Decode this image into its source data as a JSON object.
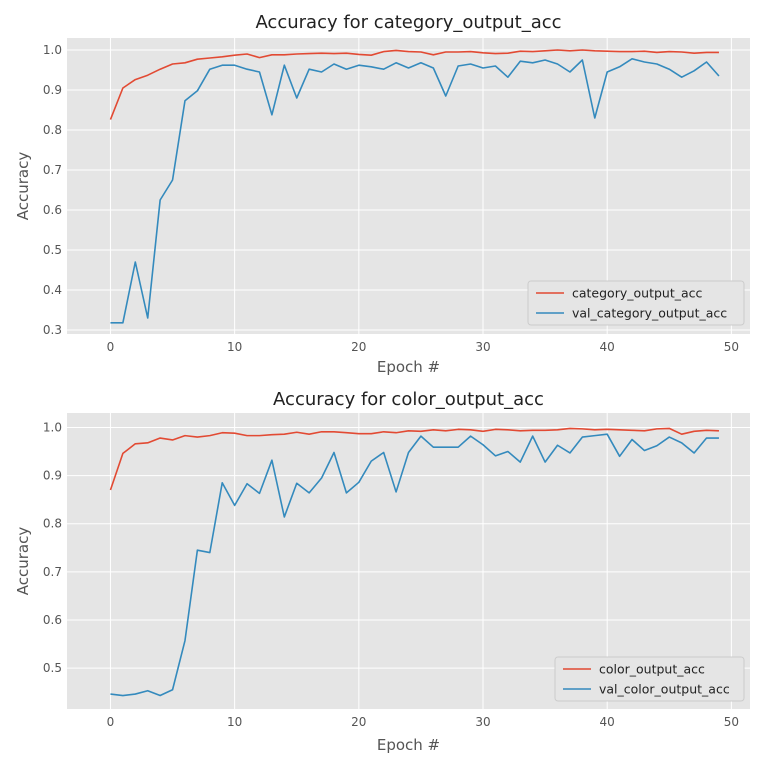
{
  "figure": {
    "background": "#ffffff",
    "panel_color": "#e5e5e5",
    "grid_color": "#ffffff",
    "train_color": "#e24a33",
    "val_color": "#348abd"
  },
  "chart_data": [
    {
      "type": "line",
      "title": "Accuracy for category_output_acc",
      "xlabel": "Epoch #",
      "ylabel": "Accuracy",
      "xlim": [
        -3.5,
        51.5
      ],
      "ylim": [
        0.29,
        1.03
      ],
      "xticks": [
        0,
        10,
        20,
        30,
        40,
        50
      ],
      "yticks": [
        0.3,
        0.4,
        0.5,
        0.6,
        0.7,
        0.8,
        0.9,
        1.0
      ],
      "ytick_labels": [
        "0.3",
        "0.4",
        "0.5",
        "0.6",
        "0.7",
        "0.8",
        "0.9",
        "1.0"
      ],
      "legend_position": "lower-right",
      "x": [
        0,
        1,
        2,
        3,
        4,
        5,
        6,
        7,
        8,
        9,
        10,
        11,
        12,
        13,
        14,
        15,
        16,
        17,
        18,
        19,
        20,
        21,
        22,
        23,
        24,
        25,
        26,
        27,
        28,
        29,
        30,
        31,
        32,
        33,
        34,
        35,
        36,
        37,
        38,
        39,
        40,
        41,
        42,
        43,
        44,
        45,
        46,
        47,
        48,
        49
      ],
      "series": [
        {
          "name": "category_output_acc",
          "role": "train",
          "values": [
            0.826,
            0.905,
            0.926,
            0.937,
            0.952,
            0.965,
            0.968,
            0.977,
            0.98,
            0.983,
            0.987,
            0.99,
            0.981,
            0.988,
            0.988,
            0.99,
            0.991,
            0.992,
            0.991,
            0.992,
            0.989,
            0.987,
            0.996,
            0.999,
            0.996,
            0.995,
            0.988,
            0.995,
            0.995,
            0.996,
            0.993,
            0.991,
            0.992,
            0.997,
            0.996,
            0.998,
            1.0,
            0.998,
            1.0,
            0.998,
            0.997,
            0.996,
            0.996,
            0.997,
            0.994,
            0.996,
            0.995,
            0.992,
            0.994,
            0.994
          ]
        },
        {
          "name": "val_category_output_acc",
          "role": "val",
          "values": [
            0.318,
            0.318,
            0.47,
            0.33,
            0.625,
            0.675,
            0.873,
            0.898,
            0.952,
            0.962,
            0.962,
            0.952,
            0.945,
            0.838,
            0.962,
            0.88,
            0.952,
            0.945,
            0.965,
            0.952,
            0.962,
            0.958,
            0.952,
            0.968,
            0.955,
            0.968,
            0.955,
            0.885,
            0.96,
            0.965,
            0.955,
            0.96,
            0.932,
            0.972,
            0.968,
            0.975,
            0.965,
            0.945,
            0.975,
            0.83,
            0.945,
            0.958,
            0.978,
            0.97,
            0.965,
            0.952,
            0.932,
            0.948,
            0.97,
            0.935
          ]
        }
      ]
    },
    {
      "type": "line",
      "title": "Accuracy for color_output_acc",
      "xlabel": "Epoch #",
      "ylabel": "Accuracy",
      "xlim": [
        -3.5,
        51.5
      ],
      "ylim": [
        0.415,
        1.03
      ],
      "xticks": [
        0,
        10,
        20,
        30,
        40,
        50
      ],
      "yticks": [
        0.5,
        0.6,
        0.7,
        0.8,
        0.9,
        1.0
      ],
      "ytick_labels": [
        "0.5",
        "0.6",
        "0.7",
        "0.8",
        "0.9",
        "1.0"
      ],
      "legend_position": "lower-right",
      "x": [
        0,
        1,
        2,
        3,
        4,
        5,
        6,
        7,
        8,
        9,
        10,
        11,
        12,
        13,
        14,
        15,
        16,
        17,
        18,
        19,
        20,
        21,
        22,
        23,
        24,
        25,
        26,
        27,
        28,
        29,
        30,
        31,
        32,
        33,
        34,
        35,
        36,
        37,
        38,
        39,
        40,
        41,
        42,
        43,
        44,
        45,
        46,
        47,
        48,
        49
      ],
      "series": [
        {
          "name": "color_output_acc",
          "role": "train",
          "values": [
            0.87,
            0.946,
            0.966,
            0.968,
            0.978,
            0.974,
            0.983,
            0.98,
            0.983,
            0.989,
            0.988,
            0.983,
            0.983,
            0.985,
            0.986,
            0.99,
            0.986,
            0.991,
            0.991,
            0.989,
            0.987,
            0.987,
            0.991,
            0.989,
            0.993,
            0.992,
            0.995,
            0.993,
            0.996,
            0.995,
            0.992,
            0.996,
            0.995,
            0.993,
            0.994,
            0.994,
            0.995,
            0.998,
            0.997,
            0.995,
            0.996,
            0.995,
            0.994,
            0.993,
            0.997,
            0.998,
            0.986,
            0.992,
            0.994,
            0.993
          ]
        },
        {
          "name": "val_color_output_acc",
          "role": "val",
          "values": [
            0.446,
            0.443,
            0.446,
            0.453,
            0.443,
            0.455,
            0.557,
            0.745,
            0.74,
            0.885,
            0.838,
            0.883,
            0.863,
            0.932,
            0.814,
            0.884,
            0.864,
            0.895,
            0.948,
            0.864,
            0.886,
            0.93,
            0.948,
            0.866,
            0.948,
            0.982,
            0.959,
            0.959,
            0.959,
            0.982,
            0.964,
            0.941,
            0.95,
            0.928,
            0.982,
            0.928,
            0.963,
            0.947,
            0.98,
            0.983,
            0.986,
            0.94,
            0.975,
            0.952,
            0.962,
            0.98,
            0.968,
            0.947,
            0.978,
            0.978
          ]
        }
      ]
    }
  ]
}
